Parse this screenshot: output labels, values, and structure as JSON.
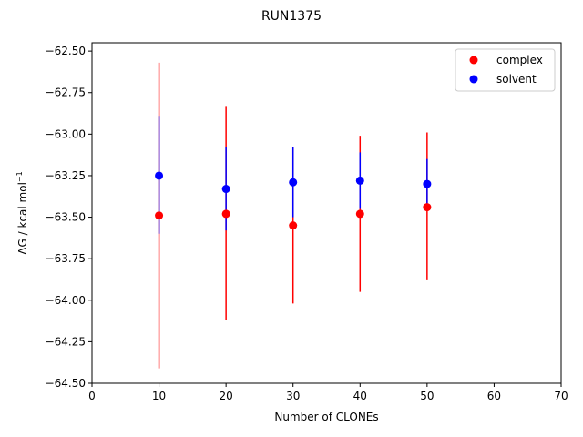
{
  "chart_data": {
    "type": "scatter",
    "title": "RUN1375",
    "xlabel": "Number of CLONEs",
    "ylabel_main": "ΔG / kcal mol",
    "ylabel_sup": "−1",
    "xlim": [
      0,
      70
    ],
    "ylim": [
      -64.5,
      -62.45
    ],
    "x_ticks": [
      0,
      10,
      20,
      30,
      40,
      50,
      60,
      70
    ],
    "x_tick_labels": [
      "0",
      "10",
      "20",
      "30",
      "40",
      "50",
      "60",
      "70"
    ],
    "y_ticks": [
      -62.5,
      -62.75,
      -63.0,
      -63.25,
      -63.5,
      -63.75,
      -64.0,
      -64.25,
      -64.5
    ],
    "y_tick_labels": [
      "−62.50",
      "−62.75",
      "−63.00",
      "−63.25",
      "−63.50",
      "−63.75",
      "−64.00",
      "−64.25",
      "−64.50"
    ],
    "grid": false,
    "legend_position": "top-right",
    "series": [
      {
        "name": "complex",
        "color": "#ff0000",
        "x": [
          10,
          20,
          30,
          40,
          50
        ],
        "y": [
          -63.49,
          -63.48,
          -63.55,
          -63.48,
          -63.44
        ],
        "err_low": [
          -64.41,
          -64.12,
          -64.02,
          -63.95,
          -63.88
        ],
        "err_high": [
          -62.57,
          -62.83,
          -63.08,
          -63.01,
          -62.99
        ]
      },
      {
        "name": "solvent",
        "color": "#0000ff",
        "x": [
          10,
          20,
          30,
          40,
          50
        ],
        "y": [
          -63.25,
          -63.33,
          -63.29,
          -63.28,
          -63.3
        ],
        "err_low": [
          -63.6,
          -63.58,
          -63.5,
          -63.45,
          -63.45
        ],
        "err_high": [
          -62.89,
          -63.08,
          -63.08,
          -63.11,
          -63.15
        ]
      }
    ]
  }
}
